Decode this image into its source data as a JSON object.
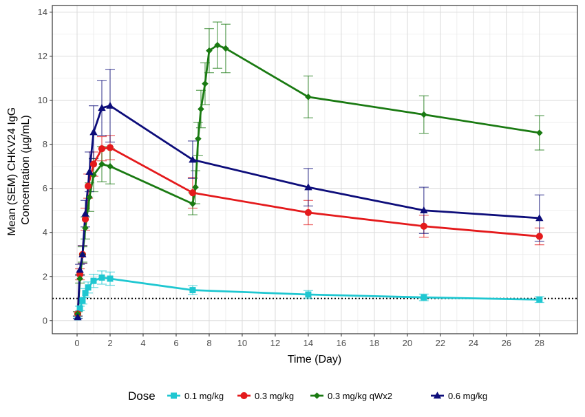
{
  "chart_data": {
    "type": "line",
    "xlabel": "Time (Day)",
    "ylabel_lines": [
      "Mean (SEM) CHKV24 IgG",
      "Concentration (µg/mL)"
    ],
    "xlim": [
      -1.5,
      30.3
    ],
    "ylim": [
      -0.6,
      14.3
    ],
    "x_ticks": [
      0,
      2,
      4,
      6,
      8,
      10,
      12,
      14,
      16,
      18,
      20,
      22,
      24,
      26,
      28
    ],
    "x_tick_labels": [
      "0",
      "2",
      "4",
      "6",
      "8",
      "10",
      "12",
      "14",
      "16",
      "18",
      "20",
      "22",
      "24",
      "26",
      "28"
    ],
    "y_ticks": [
      0,
      2,
      4,
      6,
      8,
      10,
      12,
      14
    ],
    "y_tick_labels": [
      "0",
      "2",
      "4",
      "6",
      "8",
      "10",
      "12",
      "14"
    ],
    "grid": true,
    "reference_line": {
      "y": 1.0,
      "style": "dotted",
      "color": "#000000"
    },
    "legend": {
      "title": "Dose",
      "position": "bottom"
    },
    "series": [
      {
        "name": "0.1 mg/kg",
        "color": "#1FC7D1",
        "marker": "square",
        "x": [
          0.04,
          0.17,
          0.33,
          0.5,
          0.67,
          1.0,
          1.5,
          2.0,
          7.0,
          14.0,
          21.0,
          28.0
        ],
        "y": [
          0.15,
          0.55,
          0.9,
          1.25,
          1.5,
          1.8,
          1.95,
          1.9,
          1.38,
          1.18,
          1.05,
          0.95
        ],
        "err": [
          0.05,
          0.1,
          0.15,
          0.2,
          0.25,
          0.3,
          0.3,
          0.3,
          0.2,
          0.18,
          0.15,
          0.13
        ]
      },
      {
        "name": "0.3 mg/kg",
        "color": "#E41A1C",
        "marker": "circle",
        "x": [
          0.04,
          0.17,
          0.33,
          0.5,
          0.67,
          1.0,
          1.5,
          2.0,
          7.0,
          14.0,
          21.0,
          28.0
        ],
        "y": [
          0.3,
          2.1,
          3.0,
          4.6,
          6.1,
          7.1,
          7.8,
          7.85,
          5.8,
          4.9,
          4.28,
          3.82
        ],
        "err": [
          0.1,
          0.25,
          0.4,
          0.5,
          0.55,
          0.55,
          0.55,
          0.55,
          0.7,
          0.55,
          0.5,
          0.38
        ]
      },
      {
        "name": "0.3 mg/kg qWx2",
        "color": "#1A7A12",
        "marker": "diamond",
        "x": [
          0.04,
          0.17,
          0.33,
          0.5,
          0.75,
          1.0,
          1.5,
          2.0,
          7.0,
          7.17,
          7.33,
          7.5,
          7.75,
          8.0,
          8.5,
          9.0,
          14.0,
          21.0,
          28.0
        ],
        "y": [
          0.3,
          1.9,
          3.0,
          4.2,
          5.6,
          6.6,
          7.1,
          7.0,
          5.3,
          6.05,
          8.25,
          9.6,
          10.75,
          12.25,
          12.5,
          12.35,
          10.15,
          9.35,
          8.52
        ],
        "err": [
          0.1,
          0.2,
          0.35,
          0.5,
          0.65,
          0.75,
          0.8,
          0.8,
          0.5,
          0.75,
          0.75,
          0.85,
          0.95,
          1.0,
          1.05,
          1.1,
          0.95,
          0.85,
          0.78
        ]
      },
      {
        "name": "0.6 mg/kg",
        "color": "#0D0D7A",
        "marker": "triangle",
        "x": [
          0.04,
          0.17,
          0.33,
          0.5,
          0.75,
          1.0,
          1.5,
          2.0,
          7.0,
          14.0,
          21.0,
          28.0
        ],
        "y": [
          0.15,
          2.3,
          3.0,
          4.85,
          6.75,
          8.55,
          9.65,
          9.75,
          7.3,
          6.05,
          5.0,
          4.65
        ],
        "err": [
          0.05,
          0.25,
          0.4,
          0.6,
          0.9,
          1.2,
          1.25,
          1.65,
          0.85,
          0.85,
          1.05,
          1.05
        ]
      }
    ]
  }
}
